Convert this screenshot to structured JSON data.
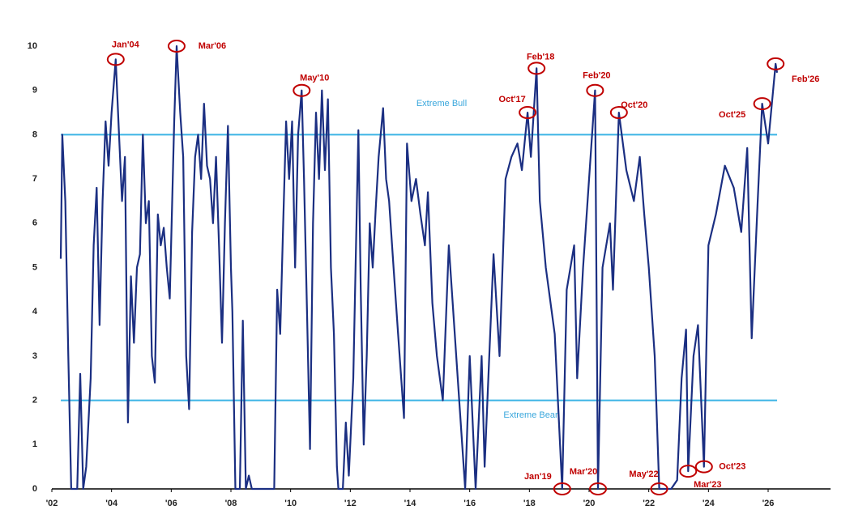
{
  "chart_data": {
    "type": "line",
    "x": [
      2002.3,
      2002.35,
      2002.45,
      2002.55,
      2002.65,
      2002.85,
      2002.95,
      2003.05,
      2003.15,
      2003.3,
      2003.4,
      2003.5,
      2003.6,
      2003.7,
      2003.8,
      2003.9,
      2004.0,
      2004.14,
      2004.25,
      2004.35,
      2004.45,
      2004.55,
      2004.65,
      2004.75,
      2004.85,
      2004.95,
      2005.05,
      2005.15,
      2005.25,
      2005.35,
      2005.45,
      2005.55,
      2005.65,
      2005.75,
      2005.85,
      2005.95,
      2006.05,
      2006.1,
      2006.18,
      2006.3,
      2006.4,
      2006.5,
      2006.6,
      2006.7,
      2006.8,
      2006.9,
      2007.0,
      2007.1,
      2007.2,
      2007.3,
      2007.4,
      2007.5,
      2007.6,
      2007.7,
      2007.8,
      2007.9,
      2008.0,
      2008.05,
      2008.15,
      2008.3,
      2008.4,
      2008.5,
      2008.6,
      2008.7,
      2009.45,
      2009.55,
      2009.65,
      2009.75,
      2009.85,
      2009.95,
      2010.05,
      2010.15,
      2010.25,
      2010.37,
      2010.45,
      2010.55,
      2010.65,
      2010.75,
      2010.85,
      2010.95,
      2011.05,
      2011.15,
      2011.25,
      2011.35,
      2011.45,
      2011.55,
      2011.6,
      2011.75,
      2011.85,
      2011.95,
      2012.1,
      2012.27,
      2012.35,
      2012.45,
      2012.55,
      2012.65,
      2012.75,
      2012.85,
      2012.95,
      2013.1,
      2013.2,
      2013.3,
      2013.45,
      2013.6,
      2013.8,
      2013.9,
      2014.05,
      2014.2,
      2014.35,
      2014.5,
      2014.6,
      2014.75,
      2014.9,
      2015.1,
      2015.3,
      2015.45,
      2015.6,
      2015.85,
      2016.0,
      2016.2,
      2016.4,
      2016.5,
      2016.8,
      2017.0,
      2017.2,
      2017.4,
      2017.6,
      2017.75,
      2017.94,
      2018.05,
      2018.24,
      2018.35,
      2018.55,
      2018.85,
      2019.1,
      2019.25,
      2019.5,
      2019.6,
      2019.8,
      2020.2,
      2020.3,
      2020.45,
      2020.7,
      2020.8,
      2021.0,
      2021.25,
      2021.5,
      2021.7,
      2021.85,
      2022.0,
      2022.2,
      2022.35,
      2022.75,
      2022.95,
      2023.1,
      2023.25,
      2023.32,
      2023.5,
      2023.65,
      2023.85,
      2024.0,
      2024.25,
      2024.55,
      2024.85,
      2025.1,
      2025.3,
      2025.45,
      2025.65,
      2025.8,
      2026.0,
      2026.25,
      2026.3
    ],
    "series": [
      {
        "color": "#1b2f82",
        "values": [
          5.2,
          8.0,
          6.5,
          3.0,
          0,
          0,
          2.6,
          0,
          0.5,
          2.5,
          5.5,
          6.8,
          3.7,
          6.5,
          8.3,
          7.3,
          8.5,
          9.7,
          8.0,
          6.5,
          7.5,
          1.5,
          4.8,
          3.3,
          5.0,
          5.3,
          8.0,
          6.0,
          6.5,
          3.0,
          2.4,
          6.2,
          5.5,
          5.9,
          5.0,
          4.3,
          7.0,
          8.3,
          10.0,
          8.5,
          7.5,
          3.0,
          1.8,
          5.8,
          7.5,
          8.0,
          7.0,
          8.7,
          7.3,
          7.0,
          6.0,
          7.5,
          5.5,
          3.3,
          6.0,
          8.2,
          5.0,
          4.0,
          0,
          0,
          3.8,
          0,
          0.3,
          0,
          0,
          4.5,
          3.5,
          6.0,
          8.3,
          7.0,
          8.3,
          5.0,
          8.0,
          9.0,
          7.0,
          4.0,
          0.9,
          6.0,
          8.5,
          7.0,
          9.0,
          7.2,
          8.8,
          5.0,
          3.5,
          0.5,
          0,
          0,
          1.5,
          0.3,
          2.5,
          8.1,
          4.5,
          1.0,
          3.0,
          6.0,
          5.0,
          6.3,
          7.5,
          8.6,
          7.0,
          6.5,
          5.0,
          3.5,
          1.6,
          7.8,
          6.5,
          7.0,
          6.2,
          5.5,
          6.7,
          4.2,
          3.0,
          2.0,
          5.5,
          4.0,
          2.5,
          0,
          3.0,
          0,
          3.0,
          0.5,
          5.3,
          3.0,
          7.0,
          7.5,
          7.8,
          7.2,
          8.5,
          7.5,
          9.5,
          6.5,
          5.0,
          3.5,
          0,
          4.5,
          5.5,
          2.5,
          5.0,
          9.0,
          0,
          5.0,
          6.0,
          4.5,
          8.5,
          7.2,
          6.5,
          7.5,
          6.2,
          5.0,
          3.0,
          0,
          0,
          0.2,
          2.5,
          3.6,
          0.4,
          3.0,
          3.7,
          0.5,
          5.5,
          6.2,
          7.3,
          6.8,
          5.8,
          7.7,
          3.4,
          6.5,
          8.7,
          7.8,
          9.6,
          9.4
        ]
      }
    ],
    "xlim": [
      2002,
      2028
    ],
    "xticks": [
      {
        "value": 2002,
        "label": "'02"
      },
      {
        "value": 2004,
        "label": "'04"
      },
      {
        "value": 2006,
        "label": "'06"
      },
      {
        "value": 2008,
        "label": "'08"
      },
      {
        "value": 2010,
        "label": "'10"
      },
      {
        "value": 2012,
        "label": "'12"
      },
      {
        "value": 2014,
        "label": "'14"
      },
      {
        "value": 2016,
        "label": "'16"
      },
      {
        "value": 2018,
        "label": "'18"
      },
      {
        "value": 2020,
        "label": "'20"
      },
      {
        "value": 2022,
        "label": "'22"
      },
      {
        "value": 2024,
        "label": "'24"
      },
      {
        "value": 2026,
        "label": "'26"
      }
    ],
    "ylim": [
      0,
      10
    ],
    "yticks": [
      0,
      1,
      2,
      3,
      4,
      5,
      6,
      7,
      8,
      9,
      10
    ],
    "thresholds": [
      {
        "value": 8,
        "label": "Extreme Bull",
        "color": "#3cb4e5"
      },
      {
        "value": 2,
        "label": "Extreme Bear",
        "color": "#3cb4e5"
      }
    ],
    "annotation_color": "#c00000",
    "annotations": [
      {
        "label": "Jan'04",
        "x": 2004.14,
        "y": 9.7
      },
      {
        "label": "Mar'06",
        "x": 2006.18,
        "y": 10.0
      },
      {
        "label": "May'10",
        "x": 2010.37,
        "y": 9.0
      },
      {
        "label": "Oct'17",
        "x": 2017.94,
        "y": 8.5
      },
      {
        "label": "Feb'18",
        "x": 2018.24,
        "y": 9.5
      },
      {
        "label": "Feb'20",
        "x": 2020.2,
        "y": 9.0
      },
      {
        "label": "Oct'20",
        "x": 2021.0,
        "y": 8.5
      },
      {
        "label": "Jan'19",
        "x": 2019.1,
        "y": 0
      },
      {
        "label": "Mar'20",
        "x": 2020.3,
        "y": 0
      },
      {
        "label": "May'22",
        "x": 2022.35,
        "y": 0
      },
      {
        "label": "Mar'23",
        "x": 2023.32,
        "y": 0.4
      },
      {
        "label": "Oct'23",
        "x": 2023.85,
        "y": 0.5
      },
      {
        "label": "Oct'25",
        "x": 2025.8,
        "y": 8.7
      },
      {
        "label": "Feb'26",
        "x": 2026.25,
        "y": 9.6
      }
    ]
  }
}
